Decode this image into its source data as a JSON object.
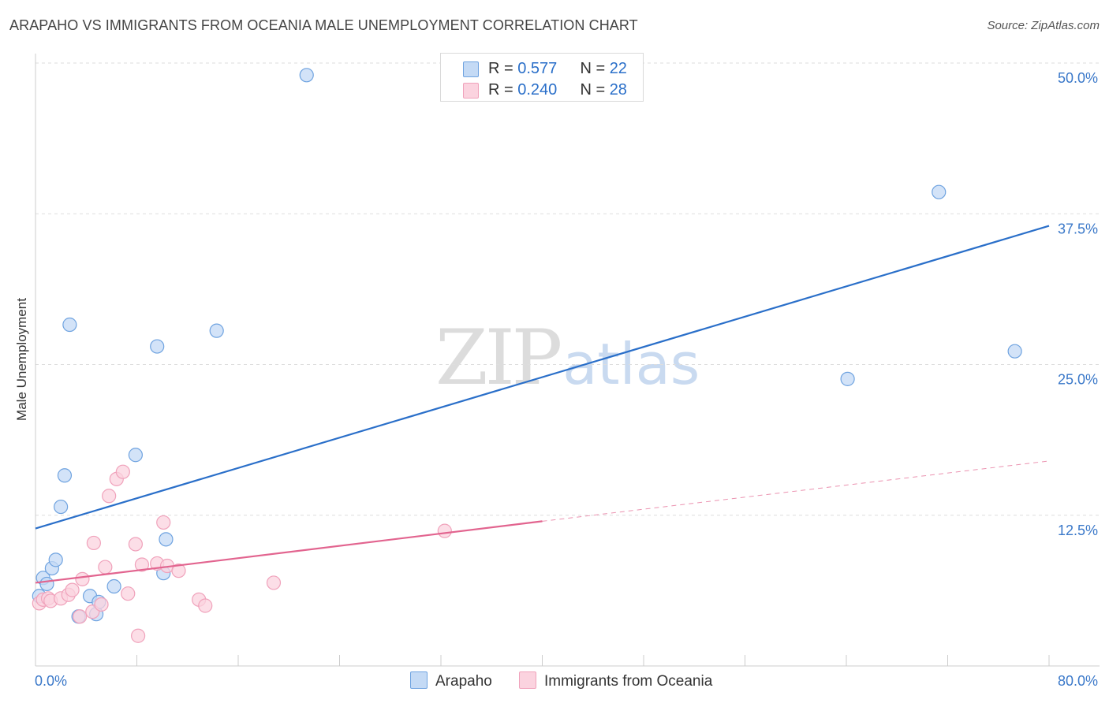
{
  "title": "ARAPAHO VS IMMIGRANTS FROM OCEANIA MALE UNEMPLOYMENT CORRELATION CHART",
  "source": "Source: ZipAtlas.com",
  "watermark": {
    "zip": "ZIP",
    "atlas": "atlas"
  },
  "legend": {
    "r_label": "R =",
    "n_label": "N =",
    "series": [
      {
        "name": "Arapaho",
        "r": "0.577",
        "n": "22"
      },
      {
        "name": "Immigrants from Oceania",
        "r": "0.240",
        "n": "28"
      }
    ]
  },
  "chart_data": {
    "type": "scatter",
    "title": "ARAPAHO VS IMMIGRANTS FROM OCEANIA MALE UNEMPLOYMENT CORRELATION CHART",
    "xlabel": "",
    "ylabel": "Male Unemployment",
    "xlim": [
      0,
      80
    ],
    "ylim": [
      0,
      50
    ],
    "x_tick_labels": [
      {
        "value": 0,
        "label": "0.0%"
      },
      {
        "value": 80,
        "label": "80.0%"
      }
    ],
    "y_tick_labels": [
      {
        "value": 12.5,
        "label": "12.5%"
      },
      {
        "value": 25,
        "label": "25.0%"
      },
      {
        "value": 37.5,
        "label": "37.5%"
      },
      {
        "value": 50,
        "label": "50.0%"
      }
    ],
    "series": [
      {
        "name": "Arapaho",
        "color": "#6fa3e0",
        "fill": "#c4daf5",
        "line_color": "#2a6fc9",
        "points": [
          [
            0.3,
            5.8
          ],
          [
            0.6,
            7.3
          ],
          [
            0.9,
            6.8
          ],
          [
            1.3,
            8.1
          ],
          [
            1.6,
            8.8
          ],
          [
            2.0,
            13.2
          ],
          [
            2.3,
            15.8
          ],
          [
            2.7,
            28.3
          ],
          [
            3.4,
            4.1
          ],
          [
            4.3,
            5.8
          ],
          [
            4.8,
            4.3
          ],
          [
            5.0,
            5.3
          ],
          [
            6.2,
            6.6
          ],
          [
            7.9,
            17.5
          ],
          [
            9.6,
            26.5
          ],
          [
            10.1,
            7.7
          ],
          [
            10.3,
            10.5
          ],
          [
            14.3,
            27.8
          ],
          [
            21.4,
            49.0
          ],
          [
            64.1,
            23.8
          ],
          [
            71.3,
            39.3
          ],
          [
            77.3,
            26.1
          ]
        ],
        "trend": {
          "style": "solid",
          "x": [
            0,
            80
          ],
          "y": [
            11.4,
            36.5
          ]
        }
      },
      {
        "name": "Immigrants from Oceania",
        "color": "#f0a2bb",
        "fill": "#fbd3df",
        "line_color": "#e2648f",
        "points": [
          [
            0.3,
            5.2
          ],
          [
            0.6,
            5.5
          ],
          [
            1.0,
            5.6
          ],
          [
            1.2,
            5.4
          ],
          [
            2.0,
            5.6
          ],
          [
            2.6,
            5.9
          ],
          [
            2.9,
            6.3
          ],
          [
            3.5,
            4.1
          ],
          [
            3.7,
            7.2
          ],
          [
            4.5,
            4.5
          ],
          [
            4.6,
            10.2
          ],
          [
            5.2,
            5.1
          ],
          [
            5.5,
            8.2
          ],
          [
            5.8,
            14.1
          ],
          [
            6.4,
            15.5
          ],
          [
            6.9,
            16.1
          ],
          [
            7.3,
            6.0
          ],
          [
            7.9,
            10.1
          ],
          [
            8.1,
            2.5
          ],
          [
            8.4,
            8.4
          ],
          [
            9.6,
            8.5
          ],
          [
            10.1,
            11.9
          ],
          [
            10.4,
            8.3
          ],
          [
            11.3,
            7.9
          ],
          [
            12.9,
            5.5
          ],
          [
            13.4,
            5.0
          ],
          [
            18.8,
            6.9
          ],
          [
            32.3,
            11.2
          ]
        ],
        "trend": {
          "style": "solid",
          "x": [
            0,
            40
          ],
          "y": [
            6.9,
            12.0
          ],
          "dashed_extension": {
            "x": [
              40,
              80
            ],
            "y": [
              12.0,
              17.0
            ]
          }
        }
      }
    ]
  }
}
